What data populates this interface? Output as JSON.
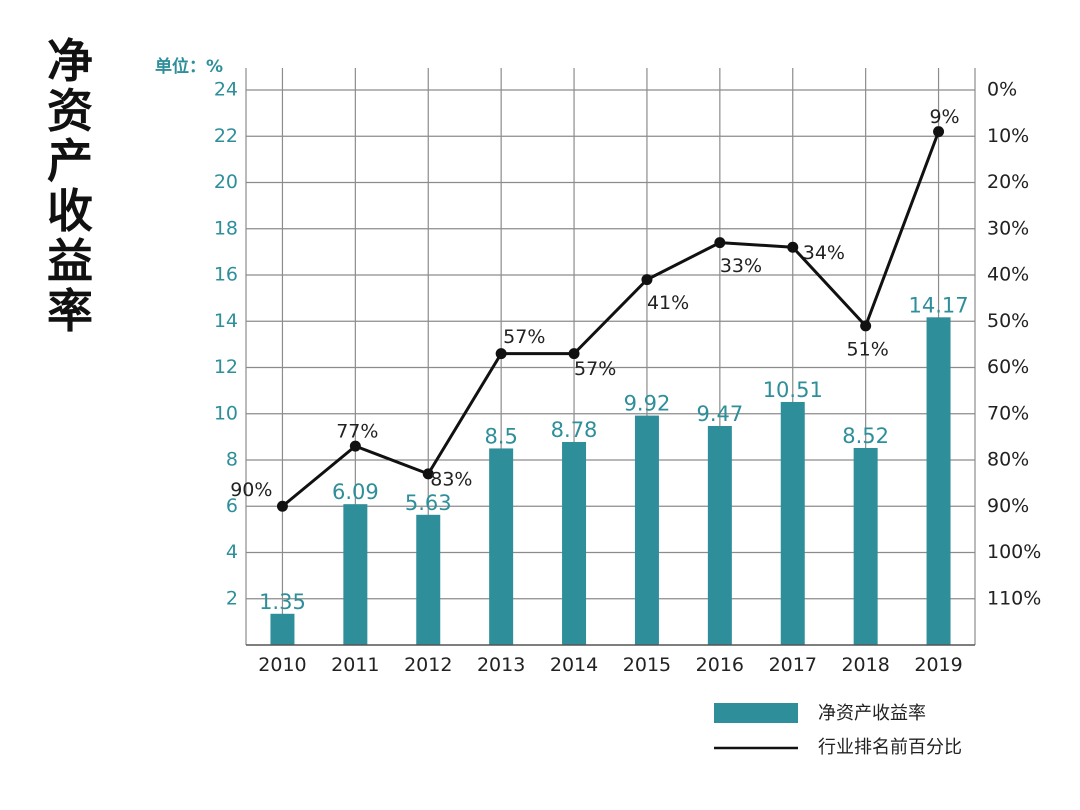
{
  "title": "净资产收益率",
  "unit_label": "单位：%",
  "chart_data": {
    "type": "bar",
    "categories": [
      "2010",
      "2011",
      "2012",
      "2013",
      "2014",
      "2015",
      "2016",
      "2017",
      "2018",
      "2019"
    ],
    "series": [
      {
        "name": "净资产收益率",
        "type": "bar",
        "axis": "left",
        "color": "#2e8f9a",
        "values": [
          1.35,
          6.09,
          5.63,
          8.5,
          8.78,
          9.92,
          9.47,
          10.51,
          8.52,
          14.17
        ],
        "labels": [
          "1.35",
          "6.09",
          "5.63",
          "8.5",
          "8.78",
          "9.92",
          "9.47",
          "10.51",
          "8.52",
          "14.17"
        ]
      },
      {
        "name": "行业排名前百分比",
        "type": "line",
        "axis": "right",
        "color": "#111111",
        "values": [
          90,
          77,
          83,
          57,
          57,
          41,
          33,
          34,
          51,
          9
        ],
        "labels": [
          "90%",
          "77%",
          "83%",
          "57%",
          "57%",
          "41%",
          "33%",
          "34%",
          "51%",
          "9%"
        ]
      }
    ],
    "y_left": {
      "min": 0,
      "max": 24,
      "ticks": [
        "2",
        "4",
        "6",
        "8",
        "10",
        "12",
        "14",
        "16",
        "18",
        "20",
        "22",
        "24"
      ]
    },
    "y_right": {
      "min": 0,
      "max": 120,
      "inverted": true,
      "ticks": [
        "0%",
        "10%",
        "20%",
        "30%",
        "40%",
        "50%",
        "60%",
        "70%",
        "80%",
        "90%",
        "100%",
        "110%"
      ]
    },
    "grid": true,
    "legend_position": "bottom-right"
  }
}
